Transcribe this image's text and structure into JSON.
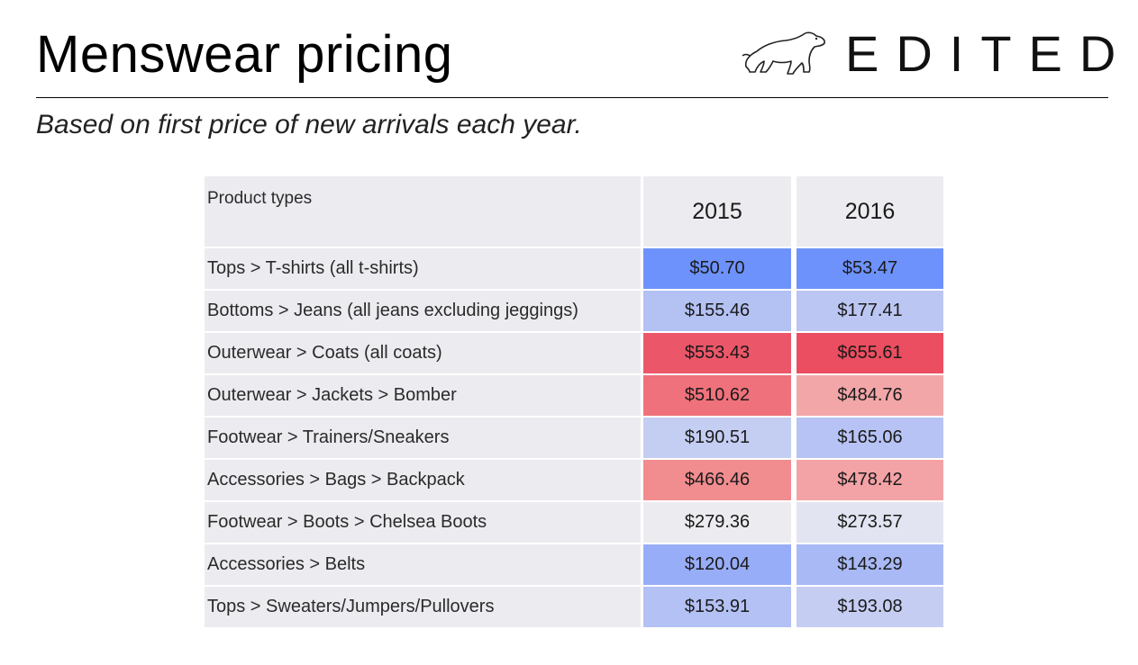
{
  "header": {
    "title": "Menswear pricing",
    "subtitle": "Based on first price of new arrivals each year.",
    "logo_text": "EDITED",
    "logo_icon": "polar-bear-icon"
  },
  "chart_data": {
    "type": "table",
    "columns": [
      "Product types",
      "2015",
      "2016"
    ],
    "rows": [
      {
        "label": "Tops > T-shirts (all t-shirts)",
        "v2015": "$50.70",
        "v2016": "$53.47",
        "c2015": "#6e92fb",
        "c2016": "#6e92fb"
      },
      {
        "label": "Bottoms > Jeans (all jeans excluding jeggings)",
        "v2015": "$155.46",
        "v2016": "$177.41",
        "c2015": "#b3c1f3",
        "c2016": "#bcc6f2"
      },
      {
        "label": "Outerwear > Coats (all coats)",
        "v2015": "$553.43",
        "v2016": "$655.61",
        "c2015": "#ec5669",
        "c2016": "#ea4e60"
      },
      {
        "label": "Outerwear > Jackets > Bomber",
        "v2015": "$510.62",
        "v2016": "$484.76",
        "c2015": "#ef717b",
        "c2016": "#f2a6a8"
      },
      {
        "label": "Footwear > Trainers/Sneakers",
        "v2015": "$190.51",
        "v2016": "$165.06",
        "c2015": "#c4cdf2",
        "c2016": "#b7c3f4"
      },
      {
        "label": "Accessories > Bags > Backpack",
        "v2015": "$466.46",
        "v2016": "$478.42",
        "c2015": "#f18c8f",
        "c2016": "#f3a2a5"
      },
      {
        "label": "Footwear > Boots > Chelsea Boots",
        "v2015": "$279.36",
        "v2016": "$273.57",
        "c2015": "#ececf0",
        "c2016": "#e2e5f1"
      },
      {
        "label": "Accessories > Belts",
        "v2015": "$120.04",
        "v2016": "$143.29",
        "c2015": "#98adf7",
        "c2016": "#a8b9f5"
      },
      {
        "label": "Tops > Sweaters/Jumpers/Pullovers",
        "v2015": "$153.91",
        "v2016": "$193.08",
        "c2015": "#b3c1f4",
        "c2016": "#c5cdf2"
      }
    ]
  }
}
